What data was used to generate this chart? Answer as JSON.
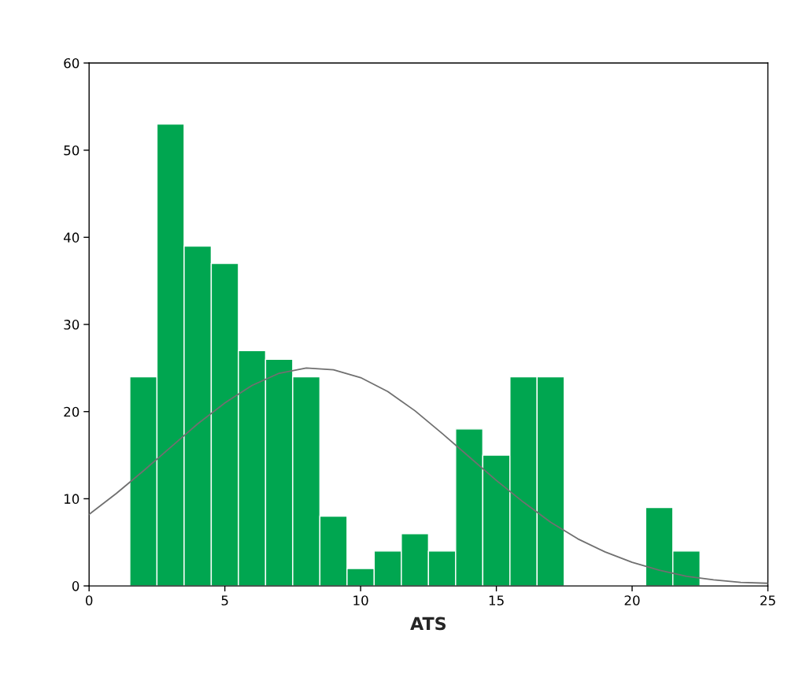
{
  "chart_data": {
    "type": "histogram",
    "xlabel": "ATS",
    "color": "#00a650",
    "bins": [
      1.5,
      2.5,
      3.5,
      4.5,
      5.5,
      6.5,
      7.5,
      8.5,
      9.5,
      10.5,
      11.5,
      12.5,
      13.5,
      14.5,
      15.5,
      16.5,
      17.5,
      18.5,
      19.5,
      20.5,
      21.5,
      22.5
    ],
    "values": [
      24,
      53,
      39,
      37,
      27,
      26,
      24,
      8,
      2,
      4,
      6,
      4,
      18,
      15,
      24,
      24,
      0,
      0,
      0,
      9,
      4
    ],
    "series": [
      {
        "type": "line",
        "color": "#707070",
        "x": [
          0,
          1,
          2,
          3,
          4,
          5,
          6,
          7,
          8,
          9,
          10,
          11,
          12,
          13,
          14,
          15,
          16,
          17,
          18,
          19,
          20,
          21,
          22,
          23,
          24,
          25
        ],
        "values": [
          8.2,
          10.6,
          13.2,
          15.9,
          18.6,
          21.0,
          23.0,
          24.4,
          25.0,
          24.8,
          23.9,
          22.3,
          20.1,
          17.5,
          14.8,
          12.1,
          9.6,
          7.3,
          5.4,
          3.9,
          2.7,
          1.8,
          1.1,
          0.7,
          0.4,
          0.3
        ]
      }
    ],
    "xlim": [
      0,
      25
    ],
    "ylim": [
      0,
      60
    ],
    "xticks": [
      0,
      5,
      10,
      15,
      20,
      25
    ],
    "yticks": [
      0,
      10,
      20,
      30,
      40,
      50,
      60
    ],
    "grid": false
  }
}
